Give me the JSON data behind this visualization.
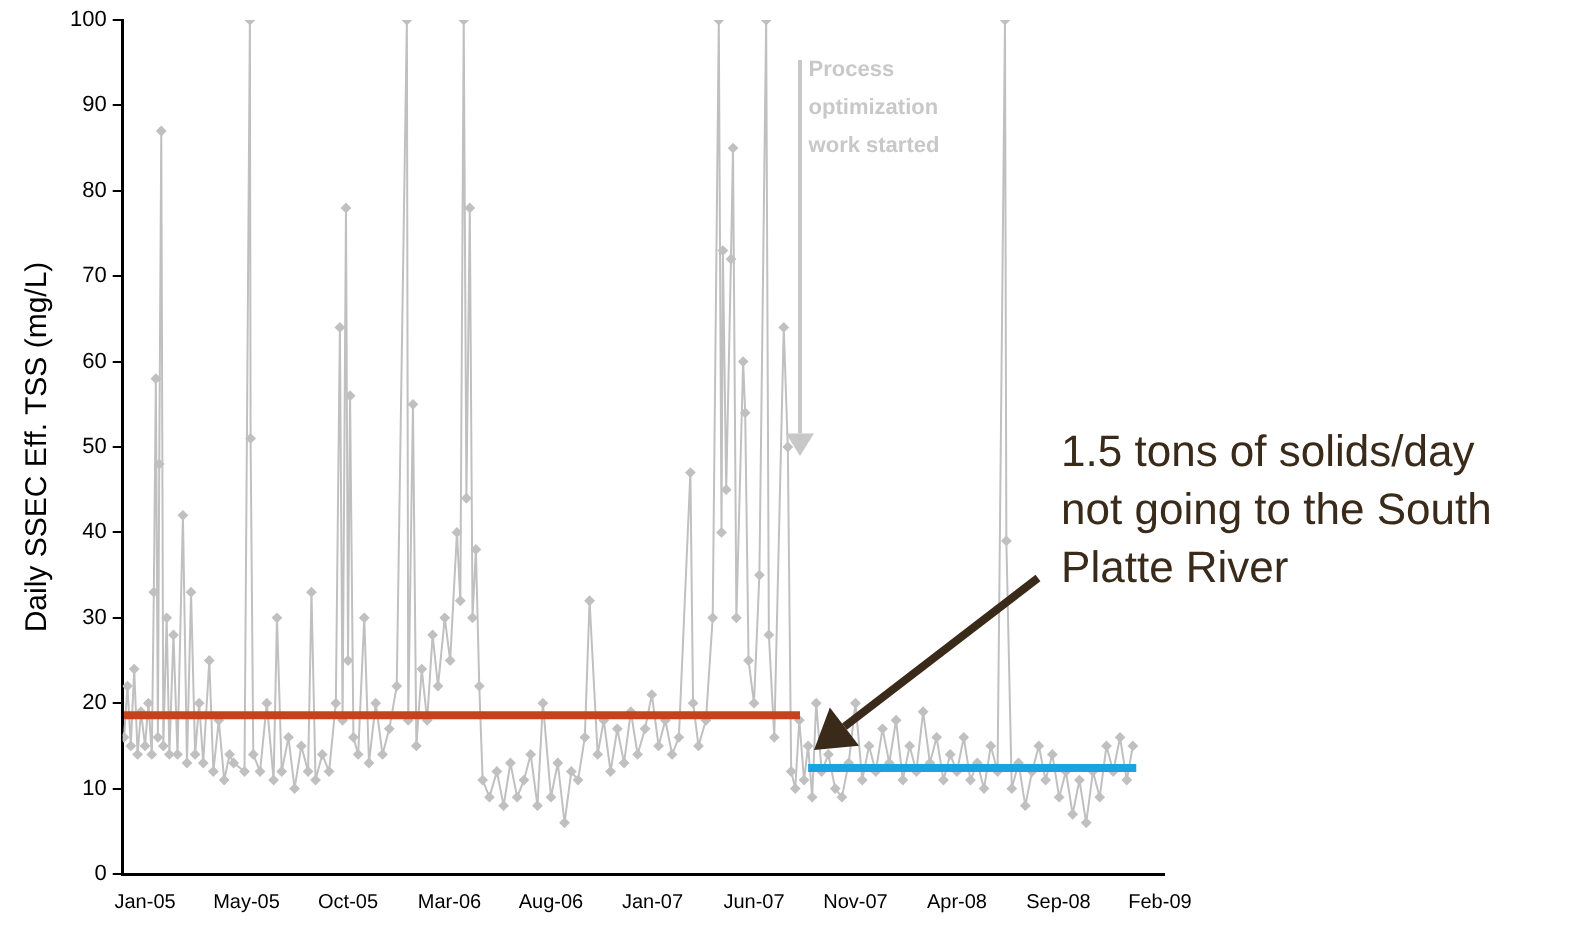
{
  "chart_data": {
    "type": "line",
    "ylabel": "Daily SSEC Eff. TSS (mg/L)",
    "marker": "diamond",
    "grid": false,
    "legend": false,
    "xlim": [
      "2004-11-29",
      "2009-02-15"
    ],
    "xticks": [
      {
        "value": "2005-01-01",
        "label": "Jan-05"
      },
      {
        "value": "2005-05-31",
        "label": "May-05"
      },
      {
        "value": "2005-10-28",
        "label": "Oct-05"
      },
      {
        "value": "2006-03-27",
        "label": "Mar-06"
      },
      {
        "value": "2006-08-24",
        "label": "Aug-06"
      },
      {
        "value": "2007-01-21",
        "label": "Jan-07"
      },
      {
        "value": "2007-06-20",
        "label": "Jun-07"
      },
      {
        "value": "2007-11-17",
        "label": "Nov-07"
      },
      {
        "value": "2008-04-15",
        "label": "Apr-08"
      },
      {
        "value": "2008-09-12",
        "label": "Sep-08"
      },
      {
        "value": "2009-02-09",
        "label": "Feb-09"
      }
    ],
    "ylim": [
      0,
      100
    ],
    "yticks": [
      0,
      10,
      20,
      30,
      40,
      50,
      60,
      70,
      80,
      90,
      100
    ],
    "x": [
      "2004-12-01",
      "2004-12-06",
      "2004-12-11",
      "2004-12-16",
      "2004-12-21",
      "2004-12-26",
      "2005-01-01",
      "2005-01-06",
      "2005-01-11",
      "2005-01-14",
      "2005-01-17",
      "2005-01-20",
      "2005-01-22",
      "2005-01-25",
      "2005-01-28",
      "2005-02-02",
      "2005-02-06",
      "2005-02-12",
      "2005-02-18",
      "2005-02-26",
      "2005-03-04",
      "2005-03-10",
      "2005-03-16",
      "2005-03-22",
      "2005-03-28",
      "2005-04-06",
      "2005-04-12",
      "2005-04-20",
      "2005-04-28",
      "2005-05-06",
      "2005-05-12",
      "2005-05-28",
      "2005-06-05",
      "2005-06-06",
      "2005-06-10",
      "2005-06-20",
      "2005-06-30",
      "2005-07-10",
      "2005-07-15",
      "2005-07-22",
      "2005-08-01",
      "2005-08-10",
      "2005-08-20",
      "2005-08-30",
      "2005-09-04",
      "2005-09-10",
      "2005-09-20",
      "2005-09-30",
      "2005-10-10",
      "2005-10-16",
      "2005-10-20",
      "2005-10-25",
      "2005-10-28",
      "2005-10-31",
      "2005-11-05",
      "2005-11-12",
      "2005-11-21",
      "2005-11-28",
      "2005-12-08",
      "2005-12-18",
      "2005-12-28",
      "2006-01-08",
      "2006-01-23",
      "2006-01-25",
      "2006-02-01",
      "2006-02-06",
      "2006-02-14",
      "2006-02-22",
      "2006-03-02",
      "2006-03-10",
      "2006-03-20",
      "2006-03-28",
      "2006-04-07",
      "2006-04-12",
      "2006-04-17",
      "2006-04-21",
      "2006-04-26",
      "2006-04-30",
      "2006-05-05",
      "2006-05-10",
      "2006-05-15",
      "2006-05-25",
      "2006-06-05",
      "2006-06-15",
      "2006-06-25",
      "2006-07-05",
      "2006-07-15",
      "2006-07-25",
      "2006-08-04",
      "2006-08-12",
      "2006-08-24",
      "2006-09-03",
      "2006-09-13",
      "2006-09-23",
      "2006-10-03",
      "2006-10-13",
      "2006-10-20",
      "2006-11-01",
      "2006-11-10",
      "2006-11-20",
      "2006-11-30",
      "2006-12-10",
      "2006-12-20",
      "2006-12-30",
      "2007-01-10",
      "2007-01-20",
      "2007-01-30",
      "2007-02-09",
      "2007-02-19",
      "2007-03-01",
      "2007-03-18",
      "2007-03-22",
      "2007-03-30",
      "2007-04-10",
      "2007-04-20",
      "2007-04-29",
      "2007-05-03",
      "2007-05-05",
      "2007-05-10",
      "2007-05-17",
      "2007-05-20",
      "2007-05-25",
      "2007-06-04",
      "2007-06-07",
      "2007-06-12",
      "2007-06-20",
      "2007-06-28",
      "2007-07-08",
      "2007-07-12",
      "2007-07-20",
      "2007-08-03",
      "2007-08-09",
      "2007-08-14",
      "2007-08-20",
      "2007-08-26",
      "2007-09-02",
      "2007-09-08",
      "2007-09-14",
      "2007-09-20",
      "2007-09-28",
      "2007-10-08",
      "2007-10-18",
      "2007-10-28",
      "2007-11-07",
      "2007-11-17",
      "2007-11-27",
      "2007-12-07",
      "2007-12-17",
      "2007-12-27",
      "2008-01-06",
      "2008-01-16",
      "2008-01-26",
      "2008-02-05",
      "2008-02-15",
      "2008-02-25",
      "2008-03-06",
      "2008-03-16",
      "2008-03-26",
      "2008-04-05",
      "2008-04-15",
      "2008-04-25",
      "2008-05-05",
      "2008-05-15",
      "2008-05-25",
      "2008-06-04",
      "2008-06-14",
      "2008-06-25",
      "2008-06-27",
      "2008-07-05",
      "2008-07-15",
      "2008-07-25",
      "2008-08-04",
      "2008-08-14",
      "2008-08-24",
      "2008-09-03",
      "2008-09-13",
      "2008-09-23",
      "2008-10-03",
      "2008-10-13",
      "2008-10-23",
      "2008-11-02",
      "2008-11-12",
      "2008-11-22",
      "2008-12-02",
      "2008-12-12",
      "2008-12-22",
      "2008-12-31"
    ],
    "series": [
      {
        "color": "#c0c0c0",
        "values": [
          16,
          22,
          15,
          24,
          14,
          19,
          15,
          20,
          14,
          33,
          58,
          16,
          48,
          87,
          15,
          30,
          14,
          28,
          14,
          42,
          13,
          33,
          14,
          20,
          13,
          25,
          12,
          18,
          11,
          14,
          13,
          12,
          100,
          51,
          14,
          12,
          20,
          11,
          30,
          12,
          16,
          10,
          15,
          12,
          33,
          11,
          14,
          12,
          20,
          64,
          18,
          78,
          25,
          56,
          16,
          14,
          30,
          13,
          20,
          14,
          17,
          22,
          100,
          18,
          55,
          15,
          24,
          18,
          28,
          22,
          30,
          25,
          40,
          32,
          100,
          44,
          78,
          30,
          38,
          22,
          11,
          9,
          12,
          8,
          13,
          9,
          11,
          14,
          8,
          20,
          9,
          13,
          6,
          12,
          11,
          16,
          32,
          14,
          18,
          12,
          17,
          13,
          19,
          14,
          17,
          21,
          15,
          18,
          14,
          16,
          47,
          20,
          15,
          18,
          30,
          100,
          40,
          73,
          45,
          72,
          85,
          30,
          60,
          54,
          25,
          20,
          35,
          100,
          28,
          16,
          64,
          50,
          12,
          10,
          18,
          11,
          15,
          9,
          20,
          12,
          14,
          10,
          9,
          13,
          20,
          11,
          15,
          12,
          17,
          13,
          18,
          11,
          15,
          12,
          19,
          13,
          16,
          11,
          14,
          12,
          16,
          11,
          13,
          10,
          15,
          12,
          100,
          39,
          10,
          13,
          8,
          12,
          15,
          11,
          14,
          9,
          12,
          7,
          11,
          6,
          12,
          9,
          15,
          12,
          16,
          11,
          15
        ]
      },
      {
        "type": "line",
        "marker": "none",
        "color": "#c8401c",
        "x": [
          "2004-12-01",
          "2007-08-27"
        ],
        "values": [
          18.6,
          18.6
        ]
      },
      {
        "type": "line",
        "marker": "none",
        "color": "#1aa3e0",
        "x": [
          "2007-09-08",
          "2009-01-05"
        ],
        "values": [
          12.4,
          12.4
        ]
      }
    ],
    "annotations": [
      "Process optimization work started",
      "1.5 tons of solids/day not going to the South Platte River"
    ]
  }
}
